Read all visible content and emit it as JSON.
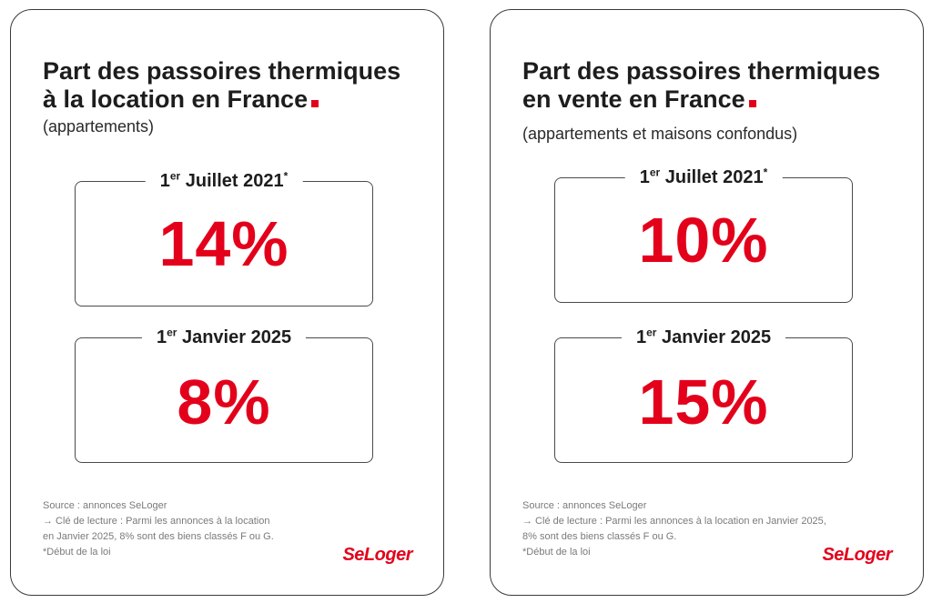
{
  "cards": [
    {
      "title_line1": "Part des passoires thermiques",
      "title_line2": "à la location en France",
      "subtitle": "(appartements)",
      "stats": [
        {
          "label_day": "1",
          "label_sup": "er",
          "label_rest": " Juillet 2021",
          "label_mark": "*",
          "value": "14%"
        },
        {
          "label_day": "1",
          "label_sup": "er",
          "label_rest": " Janvier 2025",
          "label_mark": "",
          "value": "8%"
        }
      ],
      "notes": [
        "Source : annonces SeLoger",
        "→ Clé de lecture : Parmi les annonces à la location",
        "en Janvier 2025, 8% sont des biens classés F ou G.",
        "*Début de la loi"
      ],
      "logo": "SeLoger"
    },
    {
      "title_line1": "Part des passoires thermiques",
      "title_line2": "en vente en France",
      "subtitle": "(appartements et maisons confondus)",
      "stats": [
        {
          "label_day": "1",
          "label_sup": "er",
          "label_rest": " Juillet 2021",
          "label_mark": "*",
          "value": "10%"
        },
        {
          "label_day": "1",
          "label_sup": "er",
          "label_rest": " Janvier 2025",
          "label_mark": "",
          "value": "15%"
        }
      ],
      "notes": [
        "Source : annonces SeLoger",
        "→ Clé de lecture : Parmi les annonces à la location en Janvier 2025,",
        "8% sont des biens classés F ou G.",
        "*Début de la loi"
      ],
      "logo": "SeLoger"
    }
  ],
  "colors": {
    "accent": "#e3001b",
    "text": "#1d1d1d",
    "border": "#3a3a3a",
    "notes": "#7a7a7a"
  }
}
